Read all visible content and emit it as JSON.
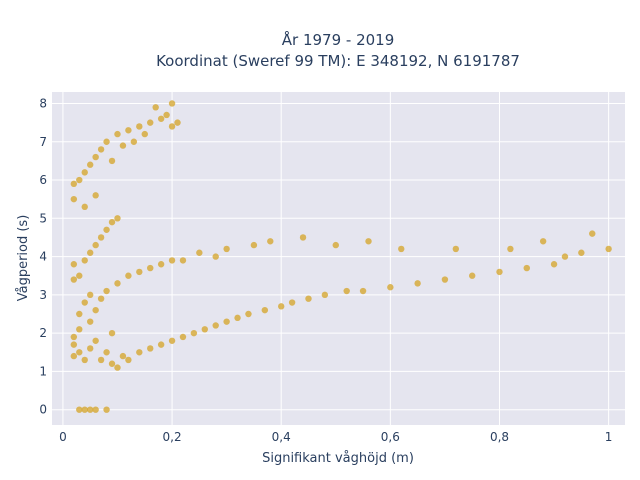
{
  "chart_data": {
    "type": "scatter",
    "title": "År 1979 - 2019",
    "subtitle": "Koordinat (Sweref 99 TM): E 348192, N 6191787",
    "xlabel": "Signifikant våghöjd (m)",
    "ylabel": "Vågperiod (s)",
    "xlim": [
      -0.02,
      1.03
    ],
    "ylim": [
      -0.4,
      8.3
    ],
    "x_ticks": [
      0,
      0.2,
      0.4,
      0.6,
      0.8,
      1
    ],
    "x_tick_labels": [
      "0",
      "0,2",
      "0,4",
      "0,6",
      "0,8",
      "1"
    ],
    "y_ticks": [
      0,
      1,
      2,
      3,
      4,
      5,
      6,
      7,
      8
    ],
    "y_tick_labels": [
      "0",
      "1",
      "2",
      "3",
      "4",
      "5",
      "6",
      "7",
      "8"
    ],
    "grid": true,
    "marker_color": "#d4a326",
    "plot_background": "#e5e5ef",
    "series": [
      {
        "points": [
          [
            0.03,
            0
          ],
          [
            0.04,
            0
          ],
          [
            0.05,
            0
          ],
          [
            0.06,
            0
          ],
          [
            0.08,
            0
          ],
          [
            0.02,
            1.4
          ],
          [
            0.02,
            1.7
          ],
          [
            0.02,
            1.9
          ],
          [
            0.03,
            1.5
          ],
          [
            0.03,
            2.1
          ],
          [
            0.03,
            2.5
          ],
          [
            0.04,
            1.3
          ],
          [
            0.04,
            2.8
          ],
          [
            0.05,
            1.6
          ],
          [
            0.05,
            2.3
          ],
          [
            0.05,
            3.0
          ],
          [
            0.06,
            1.8
          ],
          [
            0.06,
            2.6
          ],
          [
            0.07,
            1.3
          ],
          [
            0.07,
            2.9
          ],
          [
            0.08,
            1.5
          ],
          [
            0.08,
            3.1
          ],
          [
            0.09,
            1.2
          ],
          [
            0.09,
            2.0
          ],
          [
            0.1,
            1.1
          ],
          [
            0.1,
            3.3
          ],
          [
            0.11,
            1.4
          ],
          [
            0.12,
            1.3
          ],
          [
            0.12,
            3.5
          ],
          [
            0.14,
            1.5
          ],
          [
            0.14,
            3.6
          ],
          [
            0.16,
            1.6
          ],
          [
            0.16,
            3.7
          ],
          [
            0.18,
            1.7
          ],
          [
            0.18,
            3.8
          ],
          [
            0.2,
            1.8
          ],
          [
            0.2,
            3.9
          ],
          [
            0.22,
            1.9
          ],
          [
            0.22,
            3.9
          ],
          [
            0.24,
            2.0
          ],
          [
            0.25,
            4.1
          ],
          [
            0.26,
            2.1
          ],
          [
            0.28,
            2.2
          ],
          [
            0.28,
            4.0
          ],
          [
            0.3,
            2.3
          ],
          [
            0.3,
            4.2
          ],
          [
            0.32,
            2.4
          ],
          [
            0.34,
            2.5
          ],
          [
            0.35,
            4.3
          ],
          [
            0.37,
            2.6
          ],
          [
            0.38,
            4.4
          ],
          [
            0.4,
            2.7
          ],
          [
            0.42,
            2.8
          ],
          [
            0.44,
            4.5
          ],
          [
            0.45,
            2.9
          ],
          [
            0.48,
            3.0
          ],
          [
            0.5,
            4.3
          ],
          [
            0.52,
            3.1
          ],
          [
            0.55,
            3.1
          ],
          [
            0.56,
            4.4
          ],
          [
            0.6,
            3.2
          ],
          [
            0.62,
            4.2
          ],
          [
            0.65,
            3.3
          ],
          [
            0.7,
            3.4
          ],
          [
            0.72,
            4.2
          ],
          [
            0.75,
            3.5
          ],
          [
            0.8,
            3.6
          ],
          [
            0.82,
            4.2
          ],
          [
            0.85,
            3.7
          ],
          [
            0.88,
            4.4
          ],
          [
            0.9,
            3.8
          ],
          [
            0.92,
            4.0
          ],
          [
            0.95,
            4.1
          ],
          [
            0.97,
            4.6
          ],
          [
            1.0,
            4.2
          ],
          [
            0.02,
            3.4
          ],
          [
            0.02,
            3.8
          ],
          [
            0.03,
            3.5
          ],
          [
            0.04,
            3.9
          ],
          [
            0.05,
            4.1
          ],
          [
            0.06,
            4.3
          ],
          [
            0.07,
            4.5
          ],
          [
            0.08,
            4.7
          ],
          [
            0.09,
            4.9
          ],
          [
            0.1,
            5.0
          ],
          [
            0.02,
            5.5
          ],
          [
            0.02,
            5.9
          ],
          [
            0.03,
            6.0
          ],
          [
            0.04,
            6.2
          ],
          [
            0.04,
            5.3
          ],
          [
            0.05,
            6.4
          ],
          [
            0.06,
            6.6
          ],
          [
            0.06,
            5.6
          ],
          [
            0.07,
            6.8
          ],
          [
            0.08,
            7.0
          ],
          [
            0.09,
            6.5
          ],
          [
            0.1,
            7.2
          ],
          [
            0.11,
            6.9
          ],
          [
            0.12,
            7.3
          ],
          [
            0.13,
            7.0
          ],
          [
            0.14,
            7.4
          ],
          [
            0.15,
            7.2
          ],
          [
            0.16,
            7.5
          ],
          [
            0.17,
            7.9
          ],
          [
            0.18,
            7.6
          ],
          [
            0.19,
            7.7
          ],
          [
            0.2,
            8.0
          ],
          [
            0.2,
            7.4
          ],
          [
            0.21,
            7.5
          ]
        ]
      }
    ]
  }
}
